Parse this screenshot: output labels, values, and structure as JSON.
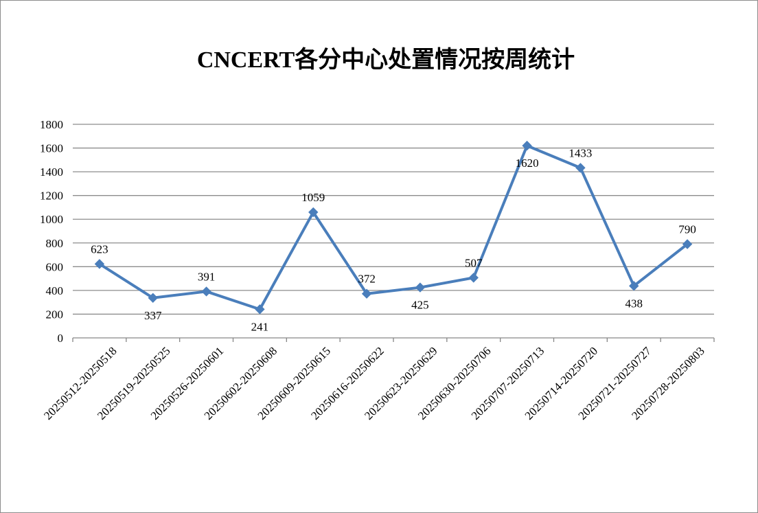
{
  "chart_data": {
    "type": "line",
    "title": "CNCERT各分中心处置情况按周统计",
    "xlabel": "",
    "ylabel": "",
    "ylim": [
      0,
      1800
    ],
    "yticks": [
      0,
      200,
      400,
      600,
      800,
      1000,
      1200,
      1400,
      1600,
      1800
    ],
    "grid": true,
    "legend": "none",
    "categories": [
      "20250512-20250518",
      "20250519-20250525",
      "20250526-20250601",
      "20250602-20250608",
      "20250609-20250615",
      "20250616-20250622",
      "20250623-20250629",
      "20250630-20250706",
      "20250707-20250713",
      "20250714-20250720",
      "20250721-20250727",
      "20250728-20250803"
    ],
    "series": [
      {
        "values": [
          623,
          337,
          391,
          241,
          1059,
          372,
          425,
          507,
          1620,
          1433,
          438,
          790
        ],
        "color": "#4a7ebb",
        "marker": "diamond"
      }
    ],
    "data_labels": [
      "623",
      "337",
      "391",
      "241",
      "1059",
      "372",
      "425",
      "507",
      "1620",
      "1433",
      "438",
      "790"
    ],
    "data_label_side": [
      "above",
      "below",
      "above",
      "below",
      "above",
      "above",
      "below",
      "above",
      "below",
      "above",
      "below",
      "above"
    ]
  }
}
